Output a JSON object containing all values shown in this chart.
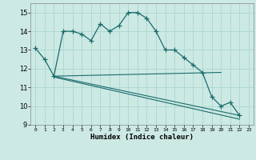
{
  "title": "",
  "xlabel": "Humidex (Indice chaleur)",
  "background_color": "#cce9e4",
  "grid_color": "#b0d8d2",
  "line_color": "#1a6b6b",
  "xlim": [
    -0.5,
    23.5
  ],
  "ylim": [
    9,
    15.5
  ],
  "yticks": [
    9,
    10,
    11,
    12,
    13,
    14,
    15
  ],
  "xticks": [
    0,
    1,
    2,
    3,
    4,
    5,
    6,
    7,
    8,
    9,
    10,
    11,
    12,
    13,
    14,
    15,
    16,
    17,
    18,
    19,
    20,
    21,
    22,
    23
  ],
  "series1_x": [
    0,
    1,
    2,
    3,
    4,
    5,
    6,
    7,
    8,
    9,
    10,
    11,
    12,
    13,
    14,
    15,
    16,
    17,
    18,
    19,
    20,
    21,
    22
  ],
  "series1_y": [
    13.1,
    12.5,
    11.6,
    14.0,
    14.0,
    13.85,
    13.5,
    14.4,
    14.0,
    14.3,
    15.0,
    15.0,
    14.7,
    14.0,
    13.0,
    13.0,
    12.6,
    12.2,
    11.8,
    10.5,
    10.0,
    10.2,
    9.5
  ],
  "series2_x": [
    2,
    20
  ],
  "series2_y": [
    11.6,
    11.8
  ],
  "series3_x": [
    2,
    22
  ],
  "series3_y": [
    11.6,
    9.5
  ],
  "series4_x": [
    2,
    22
  ],
  "series4_y": [
    11.55,
    9.3
  ]
}
